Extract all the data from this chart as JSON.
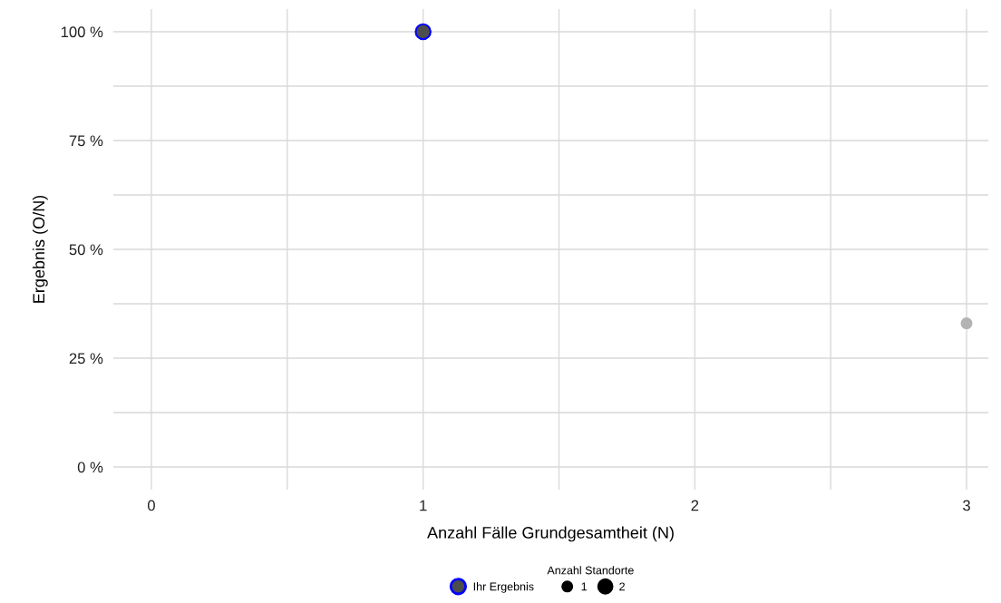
{
  "chart_data": {
    "type": "bubble",
    "xlabel": "Anzahl Fälle Grundgesamtheit (N)",
    "ylabel": "Ergebnis (O/N)",
    "legend_title": "Anzahl Standorte",
    "size_legend": [
      1,
      2
    ],
    "xlim": [
      -0.14,
      3.08
    ],
    "ylim": [
      -5.2,
      105.2
    ],
    "xticks": [
      0,
      {
        "value": 0.5,
        "label": null
      },
      1,
      {
        "value": 1.5,
        "label": null
      },
      2,
      {
        "value": 2.5,
        "label": null
      },
      3
    ],
    "yticks": [
      {
        "value": 0,
        "label": "0 %"
      },
      {
        "value": 12.5,
        "label": null
      },
      {
        "value": 25,
        "label": "25 %"
      },
      {
        "value": 37.5,
        "label": null
      },
      {
        "value": 50,
        "label": "50 %"
      },
      {
        "value": 62.5,
        "label": null
      },
      {
        "value": 75,
        "label": "75 %"
      },
      {
        "value": 87.5,
        "label": null
      },
      {
        "value": 100,
        "label": "100 %"
      }
    ],
    "grid": true,
    "legend": "bottom",
    "series": [
      {
        "color": "#b3b3b3",
        "x": [
          3
        ],
        "values": [
          33
        ],
        "sizes": [
          1
        ]
      },
      {
        "name": "Ihr Ergebnis",
        "color": "#0000ff",
        "x": [
          1
        ],
        "values": [
          100
        ],
        "sizes": [
          2
        ]
      }
    ]
  }
}
